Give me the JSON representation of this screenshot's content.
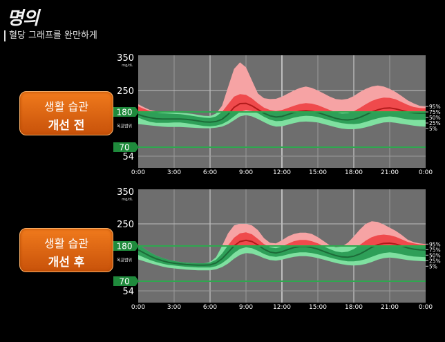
{
  "header": {
    "logo": "명의",
    "subtitle": "혈당 그래프를 완만하게"
  },
  "chart_data": [
    {
      "type": "area",
      "badge": {
        "line1": "생활 습관",
        "line2": "개선 전"
      },
      "y_ticks": [
        "350",
        "250",
        "54"
      ],
      "y_unit": "mg/dL",
      "range_labels": [
        "180",
        "70"
      ],
      "target_label": "목표범위",
      "x_ticks": [
        "0:00",
        "3:00",
        "6:00",
        "9:00",
        "12:00",
        "15:00",
        "18:00",
        "21:00",
        "0:00"
      ],
      "right_labels": [
        "95%",
        "75%",
        "50%",
        "25%",
        "5%"
      ],
      "target_range": [
        70,
        180
      ],
      "hours": [
        0,
        0.5,
        1,
        1.5,
        2,
        2.5,
        3,
        3.5,
        4,
        4.5,
        5,
        5.5,
        6,
        6.5,
        7,
        7.5,
        8,
        8.5,
        9,
        9.5,
        10,
        10.5,
        11,
        11.5,
        12,
        12.5,
        13,
        13.5,
        14,
        14.5,
        15,
        15.5,
        16,
        16.5,
        17,
        17.5,
        18,
        18.5,
        19,
        19.5,
        20,
        20.5,
        21,
        21.5,
        22,
        22.5,
        23,
        23.5,
        24
      ],
      "p5": [
        142,
        140,
        138,
        136,
        134,
        133,
        133,
        133,
        132,
        131,
        130,
        129,
        129,
        131,
        134,
        142,
        154,
        166,
        170,
        166,
        158,
        148,
        139,
        134,
        135,
        140,
        145,
        149,
        150,
        149,
        147,
        142,
        137,
        132,
        128,
        126,
        126,
        128,
        132,
        137,
        143,
        147,
        148,
        146,
        143,
        140,
        137,
        135,
        134
      ],
      "p25": [
        162,
        155,
        149,
        146,
        146,
        146,
        147,
        147,
        145,
        142,
        139,
        136,
        135,
        137,
        142,
        152,
        166,
        180,
        186,
        183,
        176,
        165,
        156,
        151,
        152,
        157,
        162,
        166,
        168,
        167,
        164,
        159,
        154,
        149,
        145,
        143,
        142,
        144,
        149,
        155,
        160,
        164,
        166,
        164,
        160,
        157,
        155,
        155,
        155
      ],
      "p50": [
        172,
        166,
        162,
        159,
        158,
        158,
        158,
        158,
        157,
        155,
        152,
        149,
        148,
        150,
        157,
        172,
        195,
        207,
        208,
        200,
        188,
        176,
        168,
        164,
        166,
        172,
        178,
        182,
        184,
        182,
        178,
        172,
        166,
        160,
        156,
        155,
        157,
        163,
        171,
        180,
        187,
        192,
        193,
        190,
        185,
        180,
        177,
        176,
        176
      ],
      "p75": [
        198,
        190,
        183,
        178,
        176,
        175,
        174,
        173,
        171,
        168,
        165,
        162,
        161,
        166,
        180,
        205,
        230,
        238,
        236,
        224,
        208,
        194,
        186,
        183,
        186,
        193,
        200,
        206,
        209,
        207,
        202,
        194,
        186,
        179,
        175,
        176,
        182,
        193,
        205,
        216,
        223,
        227,
        226,
        221,
        212,
        203,
        196,
        193,
        192
      ],
      "p95": [
        205,
        195,
        186,
        182,
        180,
        179,
        178,
        177,
        176,
        174,
        171,
        168,
        167,
        175,
        200,
        260,
        315,
        335,
        320,
        280,
        240,
        225,
        222,
        223,
        230,
        240,
        250,
        258,
        262,
        258,
        250,
        240,
        230,
        222,
        220,
        223,
        232,
        245,
        255,
        262,
        265,
        262,
        255,
        245,
        232,
        218,
        208,
        200,
        198
      ]
    },
    {
      "type": "area",
      "badge": {
        "line1": "생활 습관",
        "line2": "개선 후"
      },
      "y_ticks": [
        "350",
        "250",
        "54"
      ],
      "y_unit": "mg/dL",
      "range_labels": [
        "180",
        "70"
      ],
      "target_label": "목표범위",
      "x_ticks": [
        "0:00",
        "3:00",
        "6:00",
        "9:00",
        "12:00",
        "15:00",
        "18:00",
        "21:00",
        "0:00"
      ],
      "right_labels": [
        "95%",
        "75%",
        "50%",
        "25%",
        "5%"
      ],
      "target_range": [
        70,
        180
      ],
      "hours": [
        0,
        0.5,
        1,
        1.5,
        2,
        2.5,
        3,
        3.5,
        4,
        4.5,
        5,
        5.5,
        6,
        6.5,
        7,
        7.5,
        8,
        8.5,
        9,
        9.5,
        10,
        10.5,
        11,
        11.5,
        12,
        12.5,
        13,
        13.5,
        14,
        14.5,
        15,
        15.5,
        16,
        16.5,
        17,
        17.5,
        18,
        18.5,
        19,
        19.5,
        20,
        20.5,
        21,
        21.5,
        22,
        22.5,
        23,
        23.5,
        24
      ],
      "p5": [
        138,
        132,
        126,
        121,
        116,
        112,
        110,
        108,
        106,
        105,
        104,
        104,
        104,
        107,
        114,
        125,
        140,
        152,
        158,
        156,
        150,
        142,
        136,
        134,
        137,
        142,
        146,
        148,
        148,
        146,
        142,
        137,
        132,
        127,
        123,
        120,
        119,
        120,
        124,
        130,
        137,
        142,
        144,
        142,
        139,
        136,
        134,
        133,
        132
      ],
      "p25": [
        152,
        144,
        136,
        130,
        125,
        121,
        119,
        117,
        115,
        114,
        113,
        113,
        113,
        117,
        126,
        140,
        158,
        171,
        176,
        173,
        165,
        155,
        148,
        146,
        149,
        154,
        158,
        160,
        160,
        158,
        154,
        149,
        144,
        139,
        135,
        132,
        132,
        134,
        139,
        146,
        153,
        158,
        160,
        158,
        154,
        150,
        147,
        146,
        145
      ],
      "p50": [
        168,
        158,
        148,
        140,
        134,
        129,
        126,
        124,
        122,
        121,
        120,
        120,
        121,
        127,
        140,
        160,
        180,
        194,
        198,
        194,
        183,
        170,
        161,
        158,
        162,
        169,
        175,
        178,
        178,
        175,
        170,
        163,
        156,
        150,
        146,
        145,
        148,
        155,
        165,
        176,
        184,
        188,
        189,
        186,
        180,
        174,
        170,
        168,
        167
      ],
      "p75": [
        185,
        172,
        160,
        150,
        143,
        137,
        133,
        130,
        128,
        127,
        126,
        126,
        128,
        137,
        156,
        182,
        206,
        220,
        223,
        217,
        202,
        186,
        176,
        173,
        178,
        187,
        195,
        199,
        199,
        195,
        188,
        179,
        170,
        163,
        160,
        162,
        170,
        183,
        197,
        208,
        214,
        216,
        214,
        209,
        201,
        193,
        188,
        185,
        184
      ],
      "p95": [
        185,
        172,
        160,
        150,
        143,
        137,
        133,
        130,
        128,
        127,
        126,
        126,
        130,
        145,
        180,
        220,
        245,
        250,
        250,
        245,
        230,
        205,
        190,
        188,
        198,
        210,
        218,
        222,
        222,
        218,
        208,
        195,
        182,
        176,
        178,
        190,
        210,
        232,
        250,
        258,
        256,
        248,
        238,
        228,
        215,
        200,
        192,
        188,
        186
      ]
    }
  ]
}
